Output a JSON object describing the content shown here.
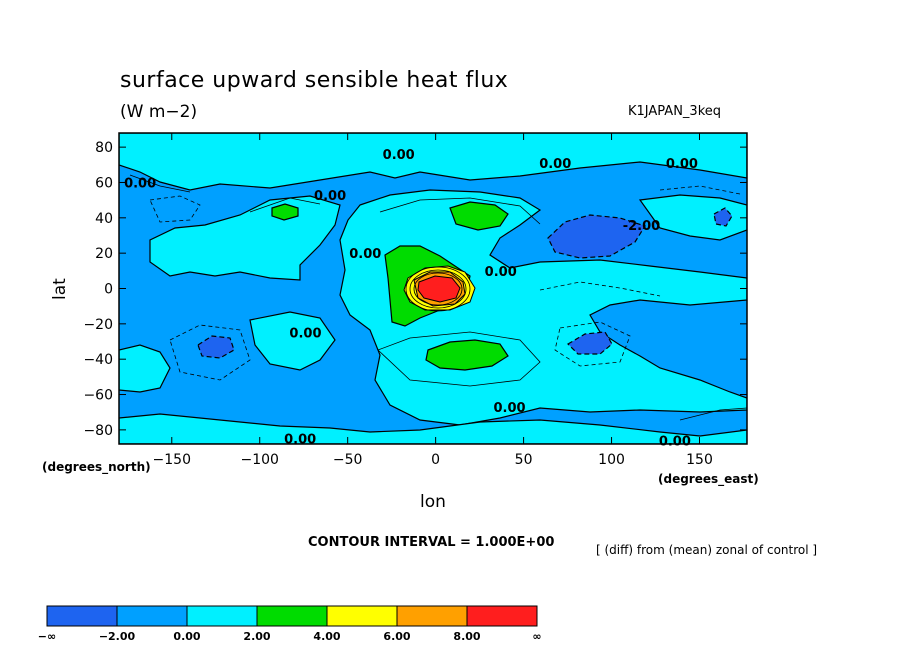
{
  "header": {
    "title": "surface upward sensible heat flux",
    "units": "(W m−2)",
    "run_name": "K1JAPAN_3keq"
  },
  "footer": {
    "contour_interval": "CONTOUR INTERVAL = 1.000E+00",
    "note": "[ (diff) from (mean) zonal of control ]"
  },
  "chart_data": {
    "type": "heatmap",
    "xlabel": "lon",
    "ylabel": "lat",
    "x_units": "(degrees_east)",
    "y_units": "(degrees_north)",
    "xlim": [
      -180,
      177
    ],
    "ylim": [
      -88,
      88
    ],
    "x_ticks": [
      -150,
      -100,
      -50,
      0,
      50,
      100,
      150
    ],
    "x_tick_labels": [
      "−150",
      "−100",
      "−50",
      "0",
      "50",
      "100",
      "150"
    ],
    "y_ticks": [
      -80,
      -60,
      -40,
      -20,
      0,
      20,
      40,
      60,
      80
    ],
    "y_tick_labels": [
      "−80",
      "−60",
      "−40",
      "−20",
      "0",
      "20",
      "40",
      "60",
      "80"
    ],
    "contour_labels": [
      {
        "text": "0.00",
        "lon": -21,
        "lat": 76
      },
      {
        "text": "0.00",
        "lon": 68,
        "lat": 71
      },
      {
        "text": "0.00",
        "lon": 140,
        "lat": 71
      },
      {
        "text": "0.00",
        "lon": -168,
        "lat": 60
      },
      {
        "text": "0.00",
        "lon": -60,
        "lat": 53
      },
      {
        "text": "-2.00",
        "lon": 117,
        "lat": 36
      },
      {
        "text": "0.00",
        "lon": -40,
        "lat": 20
      },
      {
        "text": "0.00",
        "lon": 37,
        "lat": 10
      },
      {
        "text": "0.00",
        "lon": -74,
        "lat": -25
      },
      {
        "text": "0.00",
        "lon": 42,
        "lat": -67
      },
      {
        "text": "0.00",
        "lon": -77,
        "lat": -85
      },
      {
        "text": "0.00",
        "lon": 136,
        "lat": -86
      }
    ],
    "colorbar": {
      "levels": [
        "−∞",
        "−2.00",
        "0.00",
        "2.00",
        "4.00",
        "6.00",
        "8.00",
        "∞"
      ],
      "colors": [
        "#1e64f0",
        "#00a0ff",
        "#00f0ff",
        "#00dc00",
        "#ffff00",
        "#ffa000",
        "#ff1e1e"
      ]
    },
    "regions": [
      {
        "level": "0.00 to 2.00",
        "color": "#00f0ff",
        "description": "broad positive anomaly band"
      },
      {
        "level": "2.00 to 4.00",
        "color": "#00dc00",
        "description": "positive anomaly patches"
      },
      {
        "level": "above 8.00",
        "color": "#ff1e1e",
        "description": "maximum near lon 0, lat 0"
      },
      {
        "level": "below -2.00",
        "color": "#1e64f0",
        "description": "negative anomaly patches"
      }
    ],
    "grid": false
  }
}
